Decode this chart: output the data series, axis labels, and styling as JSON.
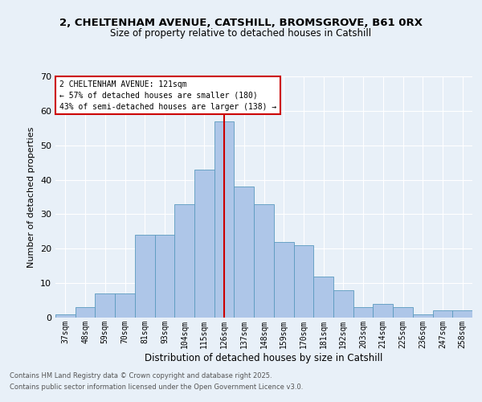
{
  "title_line1": "2, CHELTENHAM AVENUE, CATSHILL, BROMSGROVE, B61 0RX",
  "title_line2": "Size of property relative to detached houses in Catshill",
  "xlabel": "Distribution of detached houses by size in Catshill",
  "ylabel": "Number of detached properties",
  "bar_labels": [
    "37sqm",
    "48sqm",
    "59sqm",
    "70sqm",
    "81sqm",
    "93sqm",
    "104sqm",
    "115sqm",
    "126sqm",
    "137sqm",
    "148sqm",
    "159sqm",
    "170sqm",
    "181sqm",
    "192sqm",
    "203sqm",
    "214sqm",
    "225sqm",
    "236sqm",
    "247sqm",
    "258sqm"
  ],
  "bar_values": [
    1,
    3,
    7,
    7,
    24,
    24,
    33,
    43,
    57,
    38,
    33,
    22,
    21,
    12,
    8,
    3,
    4,
    3,
    1,
    2,
    2
  ],
  "bar_color": "#aec6e8",
  "bar_edgecolor": "#5a9abf",
  "property_line_label": "2 CHELTENHAM AVENUE: 121sqm",
  "annotation_line2": "← 57% of detached houses are smaller (180)",
  "annotation_line3": "43% of semi-detached houses are larger (138) →",
  "annotation_box_color": "#ffffff",
  "annotation_box_edgecolor": "#cc0000",
  "vline_color": "#cc0000",
  "vline_position": 8.0,
  "ylim": [
    0,
    70
  ],
  "yticks": [
    0,
    10,
    20,
    30,
    40,
    50,
    60,
    70
  ],
  "background_color": "#e8f0f8",
  "plot_background": "#e8f0f8",
  "footer_line1": "Contains HM Land Registry data © Crown copyright and database right 2025.",
  "footer_line2": "Contains public sector information licensed under the Open Government Licence v3.0."
}
